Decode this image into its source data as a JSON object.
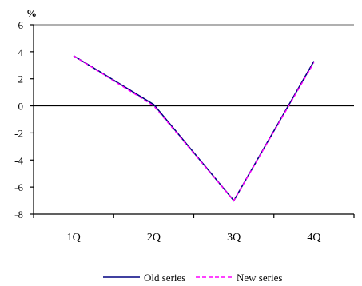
{
  "chart_data": {
    "type": "line",
    "title": "",
    "ylabel": "%",
    "xlabel": "",
    "categories": [
      "1Q",
      "2Q",
      "3Q",
      "4Q"
    ],
    "ylim": [
      -8,
      6
    ],
    "yticks": [
      6,
      4,
      2,
      0,
      -2,
      -4,
      -6,
      -8
    ],
    "grid": false,
    "legend_position": "bottom",
    "series": [
      {
        "name": "Old series",
        "values": [
          3.7,
          0.1,
          -7.0,
          3.3
        ],
        "color": "#000080",
        "style": "solid"
      },
      {
        "name": "New series",
        "values": [
          3.7,
          0.0,
          -7.0,
          3.2
        ],
        "color": "#ff00ff",
        "style": "dashed"
      }
    ]
  }
}
